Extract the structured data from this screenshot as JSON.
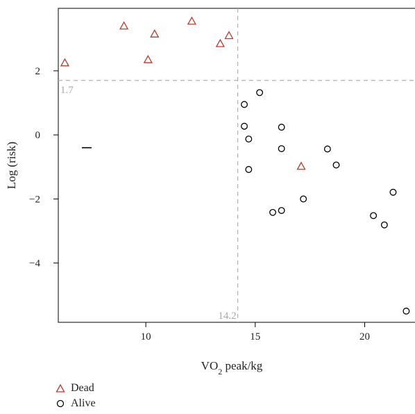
{
  "chart_data": {
    "type": "scatter",
    "xlabel_main": "VO",
    "xlabel_sub": "2",
    "xlabel_rest": " peak/kg",
    "ylabel": "Log (risk)",
    "xlim": [
      6.0,
      22.3
    ],
    "ylim": [
      -5.85,
      3.95
    ],
    "x_ticks": [
      10,
      15,
      20
    ],
    "y_ticks": [
      -4,
      -2,
      0,
      2
    ],
    "y_tick_labels": [
      "−4",
      "−2",
      "0",
      "2"
    ],
    "reference_lines": {
      "x": 14.2,
      "x_label": "14.2",
      "y": 1.7,
      "y_label": "1.7"
    },
    "colors": {
      "dead": "#c0392b",
      "alive": "#000000",
      "reference": "#b0b0b0"
    },
    "series": [
      {
        "name": "Dead",
        "marker": "triangle",
        "x": [
          6.3,
          9.0,
          10.1,
          10.4,
          12.1,
          13.4,
          13.8,
          17.1
        ],
        "y": [
          2.25,
          3.4,
          2.35,
          3.15,
          3.55,
          2.85,
          3.1,
          -0.98
        ]
      },
      {
        "name": "Alive",
        "marker": "circle",
        "x": [
          14.5,
          14.5,
          14.7,
          14.7,
          15.2,
          15.8,
          16.2,
          16.2,
          16.2,
          17.2,
          18.3,
          18.7,
          20.4,
          20.9,
          21.3,
          21.9
        ],
        "y": [
          0.95,
          0.27,
          -0.13,
          -1.08,
          1.32,
          -2.42,
          -2.36,
          -0.43,
          0.24,
          -2.0,
          -0.44,
          -0.94,
          -2.52,
          -2.81,
          -1.79,
          -5.5
        ]
      }
    ],
    "annotations": [
      {
        "marker": "dash",
        "x": 7.3,
        "y": -0.4
      }
    ],
    "legend": {
      "placement": "bottom-left"
    }
  }
}
